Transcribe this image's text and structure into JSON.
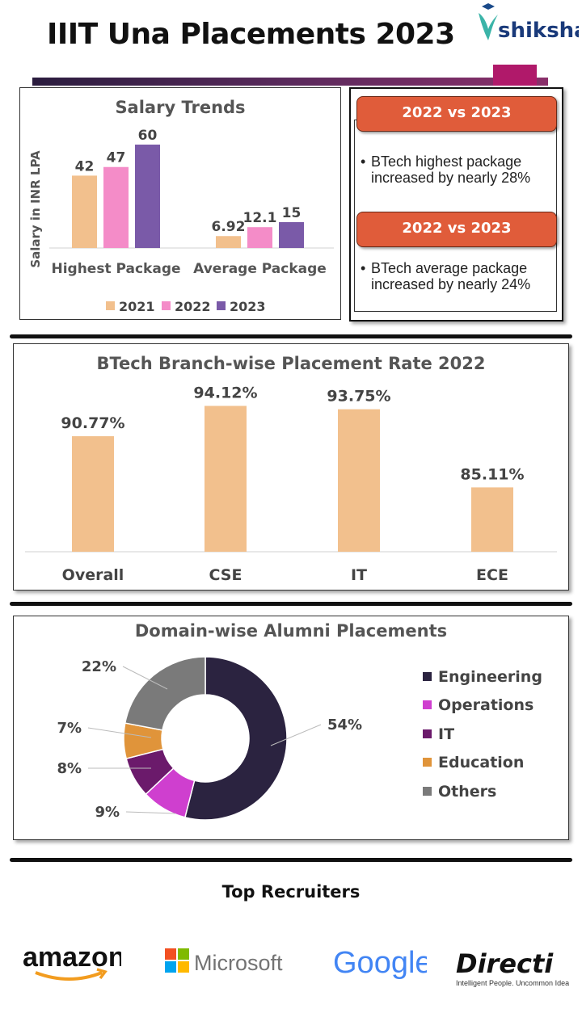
{
  "header": {
    "title": "IIIT Una Placements 2023",
    "brand": "shiksha"
  },
  "salary_chart": {
    "title": "Salary Trends",
    "ylabel": "Salary in INR LPA",
    "categories": [
      "Highest Package",
      "Average Package"
    ],
    "legend": [
      "2021",
      "2022",
      "2023"
    ],
    "colors": [
      "#f2c08d",
      "#f48cc8",
      "#7a5aa8"
    ]
  },
  "comparisons": [
    {
      "header": "2022 vs 2023",
      "bullet": "•",
      "text": "BTech highest package increased by nearly 28%"
    },
    {
      "header": "2022 vs 2023",
      "bullet": "•",
      "text": "BTech average package increased by nearly 24%"
    }
  ],
  "branch_chart": {
    "title": "BTech Branch-wise Placement Rate 2022",
    "color": "#f2c08d"
  },
  "domain_chart": {
    "title": "Domain-wise Alumni Placements",
    "legend": [
      "Engineering",
      "Operations",
      "IT",
      "Education",
      "Others"
    ],
    "colors": [
      "#2b2340",
      "#cf3fcf",
      "#6b1a6b",
      "#e0943a",
      "#7a7a7a"
    ]
  },
  "recruiters": {
    "title": "Top Recruiters",
    "logos": [
      "amazon",
      "Microsoft",
      "Google",
      "Directi"
    ],
    "directi_tagline": "Intelligent People. Uncommon Ideas."
  },
  "chart_data": [
    {
      "type": "bar",
      "title": "Salary Trends",
      "ylabel": "Salary in INR LPA",
      "categories": [
        "Highest Package",
        "Average Package"
      ],
      "series": [
        {
          "name": "2021",
          "values": [
            42,
            6.92
          ]
        },
        {
          "name": "2022",
          "values": [
            47,
            12.1
          ]
        },
        {
          "name": "2023",
          "values": [
            60,
            15
          ]
        }
      ],
      "ylim": [
        0,
        60
      ],
      "legend": "bottom",
      "grid": false
    },
    {
      "type": "bar",
      "title": "BTech Branch-wise Placement Rate 2022",
      "categories": [
        "Overall",
        "CSE",
        "IT",
        "ECE"
      ],
      "values": [
        90.77,
        94.12,
        93.75,
        85.11
      ],
      "labels": [
        "90.77%",
        "94.12%",
        "93.75%",
        "85.11%"
      ],
      "grid": false
    },
    {
      "type": "pie",
      "title": "Domain-wise Alumni Placements",
      "categories": [
        "Engineering",
        "Operations",
        "IT",
        "Education",
        "Others"
      ],
      "values": [
        54,
        9,
        8,
        7,
        22
      ],
      "labels": [
        "54%",
        "9%",
        "8%",
        "7%",
        "22%"
      ],
      "donut": true,
      "legend": "right"
    }
  ]
}
